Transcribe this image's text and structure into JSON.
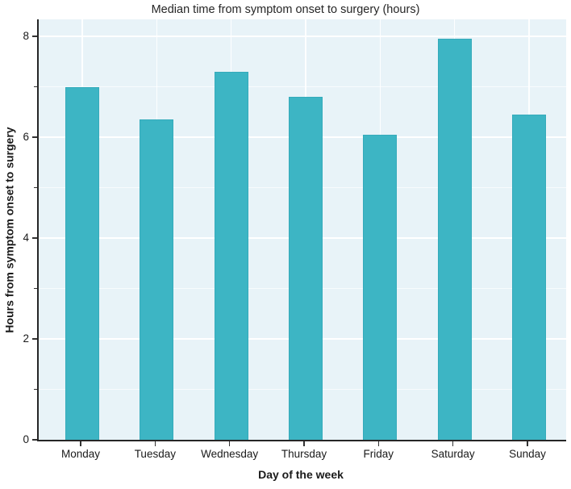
{
  "chart_data": {
    "type": "bar",
    "title": "Median time from symptom onset to surgery (hours)",
    "xlabel": "Day of the week",
    "ylabel": "Hours from symptom onset to surgery",
    "categories": [
      "Monday",
      "Tuesday",
      "Wednesday",
      "Thursday",
      "Friday",
      "Saturday",
      "Sunday"
    ],
    "values": [
      7.0,
      6.35,
      7.3,
      6.8,
      6.05,
      7.95,
      6.45
    ],
    "ylim": [
      0,
      8.34
    ],
    "yticks": [
      0,
      2,
      4,
      6,
      8
    ],
    "ytick_labels": [
      "0",
      "2",
      "4",
      "6",
      "8"
    ],
    "yticks_minor": [
      1,
      3,
      5,
      7
    ],
    "grid": true,
    "legend": "none",
    "colors": {
      "bar": "#3db5c4",
      "bar_edge": "#35abbb",
      "plot_background": "#e8f3f8",
      "grid_major": "#ffffff",
      "axis": "#262626",
      "text": "#1a1a1a"
    }
  }
}
